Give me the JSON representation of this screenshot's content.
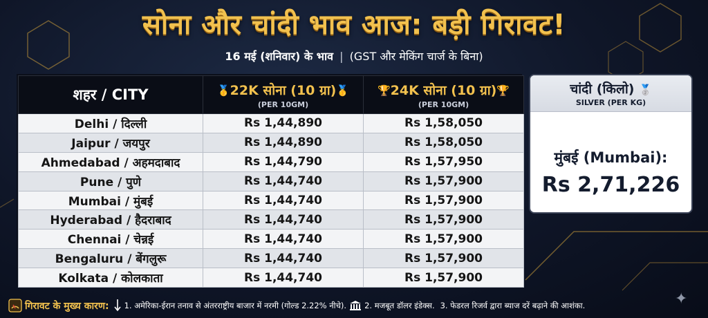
{
  "title": "सोना और चांदी भाव आज: बड़ी गिरावट!",
  "subtitle": {
    "date": "16 मई (शनिवार) के भाव",
    "separator": "|",
    "note": "(GST और मेकिंग चार्ज के बिना)"
  },
  "table": {
    "headers": {
      "city": "शहर / CITY",
      "gold22": "22K सोना (10 ग्रा)",
      "gold22_sub": "(PER 10GM)",
      "gold24": "24K सोना (10 ग्रा)",
      "gold24_sub": "(PER 10GM)"
    },
    "rows": [
      {
        "city": "Delhi / दिल्ली",
        "gold22": "Rs 1,44,890",
        "gold24": "Rs 1,58,050"
      },
      {
        "city": "Jaipur / जयपुर",
        "gold22": "Rs 1,44,890",
        "gold24": "Rs 1,58,050"
      },
      {
        "city": "Ahmedabad / अहमदाबाद",
        "gold22": "Rs 1,44,790",
        "gold24": "Rs 1,57,950"
      },
      {
        "city": "Pune / पुणे",
        "gold22": "Rs 1,44,740",
        "gold24": "Rs 1,57,900"
      },
      {
        "city": "Mumbai / मुंबई",
        "gold22": "Rs 1,44,740",
        "gold24": "Rs 1,57,900"
      },
      {
        "city": "Hyderabad / हैदराबाद",
        "gold22": "Rs 1,44,740",
        "gold24": "Rs 1,57,900"
      },
      {
        "city": "Chennai / चेन्नई",
        "gold22": "Rs 1,44,740",
        "gold24": "Rs 1,57,900"
      },
      {
        "city": "Bengaluru / बेंगलुरू",
        "gold22": "Rs 1,44,740",
        "gold24": "Rs 1,57,900"
      },
      {
        "city": "Kolkata / कोलकाता",
        "gold22": "Rs 1,44,740",
        "gold24": "Rs 1,57,900"
      }
    ]
  },
  "silver": {
    "title": "चांदी (किलो)",
    "subtitle": "SILVER (PER KG)",
    "city": "मुंबई (Mumbai):",
    "price": "Rs 2,71,226"
  },
  "footer": {
    "lead": "गिरावट के मुख्य कारण:",
    "reason1": "1. अमेरिका-ईरान तनाव से अंतरराष्ट्रीय बाजार में नरमी (गोल्ड 2.22% नीचे).",
    "reason2": "2. मजबूत डॉलर इंडेक्स.",
    "reason3": "3. फेडरल रिजर्व द्वारा ब्याज दरें बढ़ाने की आशंका."
  },
  "icons": {
    "gold22_medal": "gold-medal-icon",
    "gold24_trophy": "trophy-icon",
    "silver_medal": "silver-medal-icon",
    "footer_gauge": "fuel-gauge-icon",
    "footer_down": "down-arrow-icon",
    "footer_bank": "bank-icon",
    "corner_star": "sparkle-icon"
  },
  "colors": {
    "accent_gold": "#f2c14e",
    "background_navy": "#0f1628"
  }
}
